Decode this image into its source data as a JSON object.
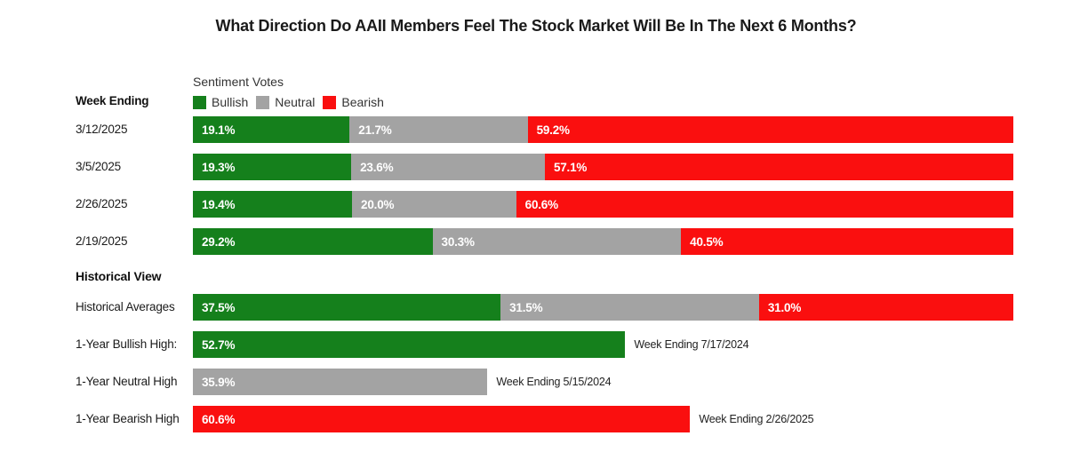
{
  "title": "What Direction Do AAII Members Feel The Stock Market Will Be In The Next 6 Months?",
  "colors": {
    "bullish": "#15801c",
    "neutral": "#a3a3a3",
    "bearish": "#fa0f0f"
  },
  "legend": {
    "title": "Sentiment Votes",
    "items": [
      {
        "label": "Bullish",
        "color_key": "bullish"
      },
      {
        "label": "Neutral",
        "color_key": "neutral"
      },
      {
        "label": "Bearish",
        "color_key": "bearish"
      }
    ]
  },
  "sections": {
    "weekly_header": "Week Ending",
    "historical_header": "Historical View"
  },
  "chart_data": {
    "type": "bar",
    "orientation": "horizontal",
    "stacked": true,
    "xlim": [
      0,
      100
    ],
    "value_unit": "%",
    "series_names": [
      "Bullish",
      "Neutral",
      "Bearish"
    ],
    "weekly_rows": [
      {
        "label": "3/12/2025",
        "bullish": 19.1,
        "neutral": 21.7,
        "bearish": 59.2
      },
      {
        "label": "3/5/2025",
        "bullish": 19.3,
        "neutral": 23.6,
        "bearish": 57.1
      },
      {
        "label": "2/26/2025",
        "bullish": 19.4,
        "neutral": 20.0,
        "bearish": 60.6
      },
      {
        "label": "2/19/2025",
        "bullish": 29.2,
        "neutral": 30.3,
        "bearish": 40.5
      }
    ],
    "historical_rows": [
      {
        "label": "Historical Averages",
        "kind": "stacked",
        "bullish": 37.5,
        "neutral": 31.5,
        "bearish": 31.0
      },
      {
        "label": "1-Year Bullish High:",
        "kind": "single",
        "series": "bullish",
        "value": 52.7,
        "annotation": "Week Ending 7/17/2024"
      },
      {
        "label": "1-Year Neutral High",
        "kind": "single",
        "series": "neutral",
        "value": 35.9,
        "annotation": "Week Ending 5/15/2024"
      },
      {
        "label": "1-Year Bearish High",
        "kind": "single",
        "series": "bearish",
        "value": 60.6,
        "annotation": "Week Ending 2/26/2025"
      }
    ]
  }
}
